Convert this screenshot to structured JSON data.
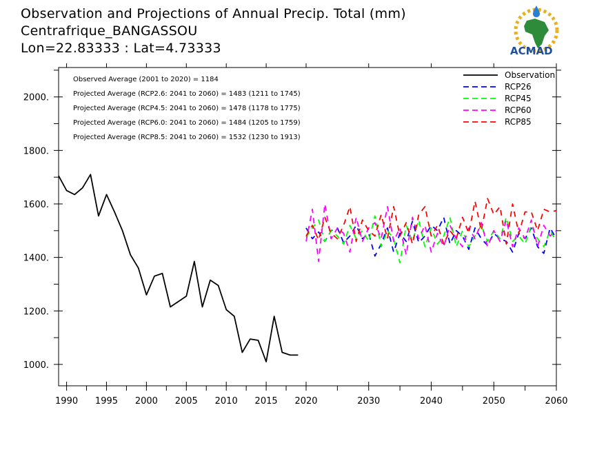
{
  "header": {
    "title_lines": [
      "Observation and Projections of Annual Precip. Total (mm)",
      "Centrafrique_BANGASSOU",
      "Lon=22.83333 : Lat=4.73333"
    ]
  },
  "logo": {
    "text": "ACMAD",
    "icon": "africa-map-sun-raindrop-icon"
  },
  "colors": {
    "Observation": "#000000",
    "RCP26": "#0000ff",
    "RCP45": "#00ff00",
    "RCP60": "#ff00ff",
    "RCP85": "#ff0000"
  },
  "chart_data": {
    "type": "line",
    "title": "Observation and Projections of Annual Precip. Total (mm)",
    "xlabel": "",
    "ylabel": "",
    "xlim": [
      1989,
      2060
    ],
    "ylim": [
      920,
      2110
    ],
    "grid": false,
    "legend_position": "top-right",
    "x_ticks": [
      {
        "value": 1990,
        "label": "1990"
      },
      {
        "value": 1995,
        "label": "1995"
      },
      {
        "value": 2000,
        "label": "2000"
      },
      {
        "value": 2005,
        "label": "2005"
      },
      {
        "value": 2010,
        "label": "2010"
      },
      {
        "value": 2015,
        "label": "2015"
      },
      {
        "value": 2020,
        "label": "2020"
      },
      {
        "value": 2030,
        "label": "2030"
      },
      {
        "value": 2040,
        "label": "2040"
      },
      {
        "value": 2050,
        "label": "2050"
      },
      {
        "value": 2060,
        "label": "2060"
      }
    ],
    "y_ticks": [
      {
        "value": 1000,
        "label": "1000."
      },
      {
        "value": 1200,
        "label": "1200."
      },
      {
        "value": 1400,
        "label": "1400."
      },
      {
        "value": 1600,
        "label": "1600."
      },
      {
        "value": 1800,
        "label": "1800."
      },
      {
        "value": 2000,
        "label": "2000."
      }
    ],
    "annotations": [
      "Observed Average (2001 to 2020) = 1184",
      "Projected Average (RCP2.6: 2041 to 2060) = 1483 (1211 to 1745)",
      "Projected Average (RCP4.5: 2041 to 2060) = 1478 (1178 to 1775)",
      "Projected Average (RCP6.0: 2041 to 2060) = 1484 (1205 to 1759)",
      "Projected Average (RCP8.5: 2041 to 2060) = 1532 (1230 to 1913)"
    ],
    "series": [
      {
        "name": "Observation",
        "x": [
          1989,
          1990,
          1991,
          1992,
          1993,
          1994,
          1995,
          1996,
          1997,
          1998,
          1999,
          2000,
          2001,
          2002,
          2003,
          2004,
          2005,
          2006,
          2007,
          2008,
          2009,
          2010,
          2011,
          2012,
          2013,
          2014,
          2015,
          2016,
          2017,
          2018,
          2019
        ],
        "y": [
          1705,
          1650,
          1635,
          1660,
          1710,
          1555,
          1635,
          1570,
          1500,
          1410,
          1360,
          1260,
          1330,
          1340,
          1215,
          1235,
          1255,
          1385,
          1215,
          1315,
          1295,
          1205,
          1180,
          1045,
          1095,
          1090,
          1010,
          1180,
          1045,
          1035,
          1035
        ]
      },
      {
        "name": "RCP26",
        "x": [
          2020,
          2021,
          2022,
          2023,
          2024,
          2025,
          2026,
          2027,
          2028,
          2029,
          2030,
          2031,
          2032,
          2033,
          2034,
          2035,
          2036,
          2037,
          2038,
          2039,
          2040,
          2041,
          2042,
          2043,
          2044,
          2045,
          2046,
          2047,
          2048,
          2049,
          2050,
          2051,
          2052,
          2053,
          2054,
          2055,
          2056,
          2057,
          2058,
          2059,
          2060
        ],
        "y": [
          1510,
          1470,
          1495,
          1460,
          1500,
          1510,
          1455,
          1480,
          1520,
          1470,
          1490,
          1405,
          1450,
          1510,
          1420,
          1490,
          1460,
          1535,
          1455,
          1480,
          1520,
          1500,
          1550,
          1450,
          1500,
          1480,
          1430,
          1510,
          1470,
          1445,
          1490,
          1470,
          1460,
          1420,
          1490,
          1470,
          1510,
          1440,
          1415,
          1510,
          1470
        ]
      },
      {
        "name": "RCP45",
        "x": [
          2020,
          2021,
          2022,
          2023,
          2024,
          2025,
          2026,
          2027,
          2028,
          2029,
          2030,
          2031,
          2032,
          2033,
          2034,
          2035,
          2036,
          2037,
          2038,
          2039,
          2040,
          2041,
          2042,
          2043,
          2044,
          2045,
          2046,
          2047,
          2048,
          2049,
          2050,
          2051,
          2052,
          2053,
          2054,
          2055,
          2056,
          2057,
          2058,
          2059,
          2060
        ],
        "y": [
          1475,
          1510,
          1540,
          1460,
          1500,
          1480,
          1450,
          1520,
          1470,
          1500,
          1460,
          1555,
          1440,
          1500,
          1470,
          1380,
          1520,
          1460,
          1540,
          1440,
          1510,
          1450,
          1480,
          1550,
          1440,
          1500,
          1440,
          1480,
          1520,
          1460,
          1500,
          1470,
          1550,
          1460,
          1480,
          1450,
          1520,
          1470,
          1440,
          1500,
          1460
        ]
      },
      {
        "name": "RCP60",
        "x": [
          2020,
          2021,
          2022,
          2023,
          2024,
          2025,
          2026,
          2027,
          2028,
          2029,
          2030,
          2031,
          2032,
          2033,
          2034,
          2035,
          2036,
          2037,
          2038,
          2039,
          2040,
          2041,
          2042,
          2043,
          2044,
          2045,
          2046,
          2047,
          2048,
          2049,
          2050,
          2051,
          2052,
          2053,
          2054,
          2055,
          2056,
          2057,
          2058,
          2059,
          2060
        ],
        "y": [
          1460,
          1580,
          1385,
          1600,
          1470,
          1510,
          1490,
          1420,
          1550,
          1460,
          1510,
          1530,
          1470,
          1590,
          1460,
          1510,
          1410,
          1550,
          1470,
          1520,
          1420,
          1490,
          1440,
          1520,
          1470,
          1440,
          1510,
          1470,
          1530,
          1440,
          1500,
          1460,
          1540,
          1440,
          1510,
          1470,
          1540,
          1440,
          1520,
          1480,
          1500
        ]
      },
      {
        "name": "RCP85",
        "x": [
          2020,
          2021,
          2022,
          2023,
          2024,
          2025,
          2026,
          2027,
          2028,
          2029,
          2030,
          2031,
          2032,
          2033,
          2034,
          2035,
          2036,
          2037,
          2038,
          2039,
          2040,
          2041,
          2042,
          2043,
          2044,
          2045,
          2046,
          2047,
          2048,
          2049,
          2050,
          2051,
          2052,
          2053,
          2054,
          2055,
          2056,
          2057,
          2058,
          2059,
          2060
        ],
        "y": [
          1480,
          1520,
          1465,
          1550,
          1490,
          1470,
          1520,
          1590,
          1460,
          1540,
          1500,
          1480,
          1560,
          1470,
          1590,
          1480,
          1530,
          1450,
          1560,
          1590,
          1480,
          1520,
          1450,
          1500,
          1470,
          1550,
          1490,
          1610,
          1500,
          1620,
          1560,
          1590,
          1450,
          1600,
          1490,
          1570,
          1570,
          1500,
          1580,
          1570,
          1575
        ]
      }
    ]
  }
}
